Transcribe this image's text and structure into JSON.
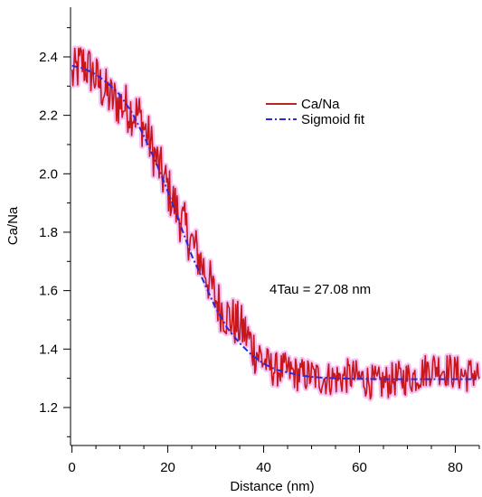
{
  "chart_data": {
    "type": "line",
    "xlabel": "Distance (nm)",
    "ylabel": "Ca/Na",
    "xlim": [
      -0.3,
      85
    ],
    "ylim": [
      1.07,
      2.57
    ],
    "x_ticks": [
      0,
      20,
      40,
      60,
      80
    ],
    "y_ticks": [
      1.2,
      1.4,
      1.6,
      1.8,
      2.0,
      2.2,
      2.4
    ],
    "x_tick_labels": [
      "0",
      "20",
      "40",
      "60",
      "80"
    ],
    "y_tick_labels": [
      "1.2",
      "1.4",
      "1.6",
      "1.8",
      "2.0",
      "2.2",
      "2.4"
    ],
    "grid": false,
    "legend_position": "top-right",
    "annotation": "4Tau = 27.08 nm",
    "series": [
      {
        "name": "Ca/Na",
        "style": "solid",
        "color": "#c8171b",
        "glow": "#f2b3f2",
        "x": [
          0.0,
          2.0,
          4.0,
          6.0,
          8.0,
          10.0,
          12.0,
          14.0,
          16.0,
          18.0,
          20.0,
          22.0,
          24.0,
          26.0,
          28.0,
          30.0,
          32.0,
          34.0,
          36.0,
          38.0,
          40.0,
          42.0,
          44.0,
          46.0,
          48.0,
          50.0,
          52.0,
          54.0,
          56.0,
          58.0,
          60.0,
          62.0,
          64.0,
          66.0,
          68.0,
          70.0,
          72.0,
          74.0,
          76.0,
          78.0,
          80.0,
          82.0,
          84.0,
          85.0
        ],
        "y": [
          2.33,
          2.38,
          2.35,
          2.3,
          2.26,
          2.24,
          2.22,
          2.2,
          2.12,
          2.03,
          1.95,
          1.87,
          1.8,
          1.73,
          1.66,
          1.57,
          1.52,
          1.49,
          1.46,
          1.4,
          1.36,
          1.33,
          1.33,
          1.32,
          1.31,
          1.31,
          1.3,
          1.3,
          1.3,
          1.31,
          1.3,
          1.29,
          1.28,
          1.29,
          1.3,
          1.3,
          1.31,
          1.33,
          1.34,
          1.33,
          1.32,
          1.31,
          1.32,
          1.31
        ]
      },
      {
        "name": "Sigmoid fit",
        "style": "dash-dot",
        "color": "#2a2ad6",
        "x": [
          0.0,
          2.5,
          5.0,
          7.5,
          10.0,
          12.5,
          15.0,
          17.5,
          20.0,
          22.5,
          25.0,
          27.5,
          30.0,
          32.5,
          35.0,
          37.5,
          40.0,
          42.5,
          45.0,
          47.5,
          50.0,
          52.5,
          55.0,
          57.5,
          60.0,
          65.0,
          70.0,
          75.0,
          80.0,
          85.0
        ],
        "y": [
          2.37,
          2.36,
          2.34,
          2.31,
          2.27,
          2.21,
          2.13,
          2.04,
          1.94,
          1.83,
          1.72,
          1.63,
          1.54,
          1.47,
          1.42,
          1.38,
          1.35,
          1.33,
          1.32,
          1.31,
          1.305,
          1.302,
          1.3,
          1.299,
          1.298,
          1.297,
          1.297,
          1.297,
          1.297,
          1.297
        ]
      }
    ]
  }
}
